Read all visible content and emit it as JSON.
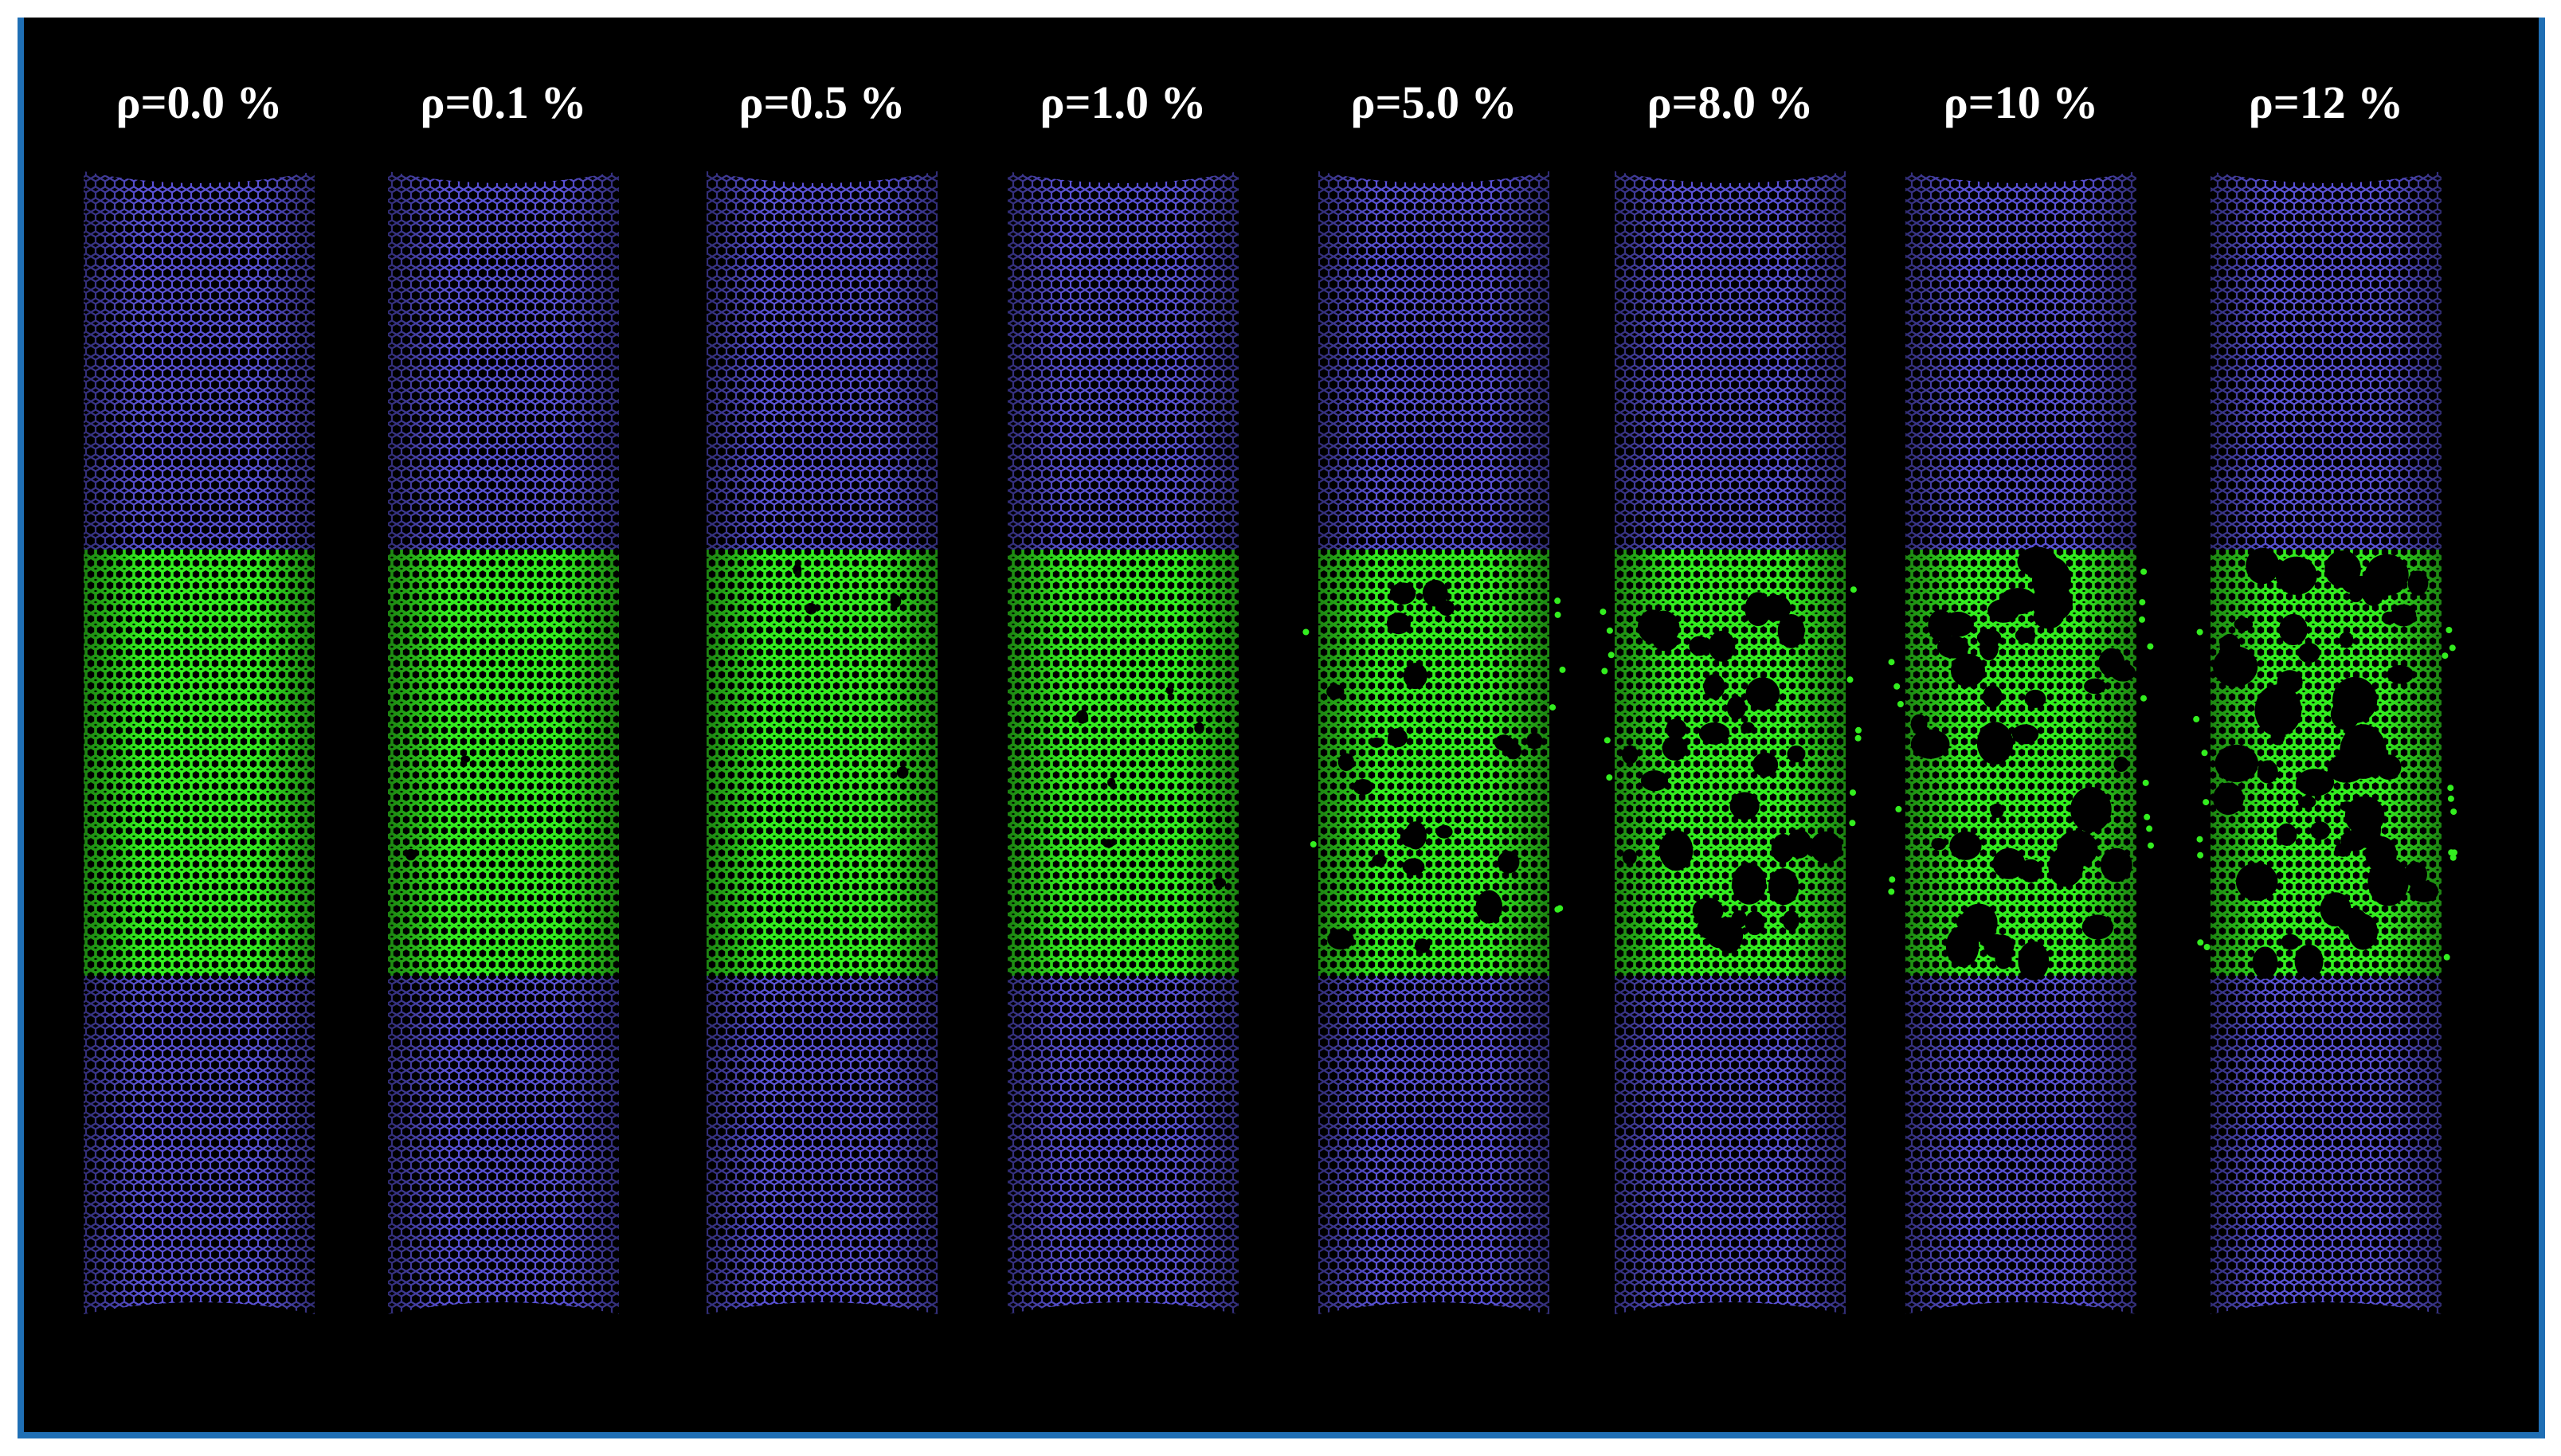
{
  "figure": {
    "colors": {
      "background": "#000000",
      "border": "#1f6fb5",
      "pristine_atoms": "#5a52d6",
      "defect_region_atoms": "#33ee1f",
      "label_text": "#ffffff"
    },
    "panels": [
      {
        "label": "ρ=0.0 %",
        "defect_percent": 0.0
      },
      {
        "label": "ρ=0.1 %",
        "defect_percent": 0.1
      },
      {
        "label": "ρ=0.5 %",
        "defect_percent": 0.5
      },
      {
        "label": "ρ=1.0 %",
        "defect_percent": 1.0
      },
      {
        "label": "ρ=5.0 %",
        "defect_percent": 5.0
      },
      {
        "label": "ρ=8.0 %",
        "defect_percent": 8.0
      },
      {
        "label": "ρ=10 %",
        "defect_percent": 10
      },
      {
        "label": "ρ=12 %",
        "defect_percent": 12
      }
    ]
  }
}
